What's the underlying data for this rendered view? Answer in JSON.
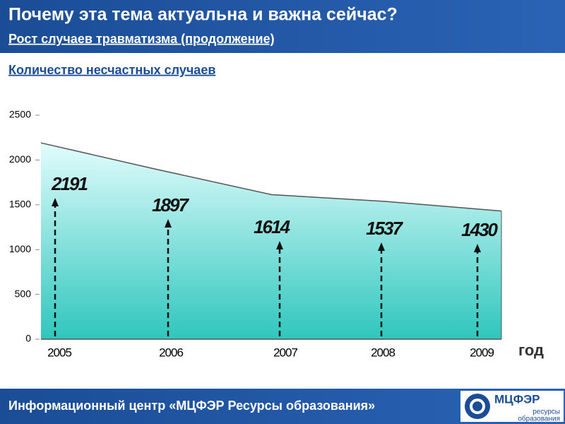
{
  "header": {
    "title": "Почему эта тема актуальна и важна сейчас?",
    "subtitle": "Рост случаев травматизма (продолжение)"
  },
  "chart_data": {
    "type": "area",
    "title": "Количество  несчастных случаев",
    "x_label": "год",
    "categories": [
      "2005",
      "2006",
      "2007",
      "2008",
      "2009"
    ],
    "values": [
      2191,
      1897,
      1614,
      1537,
      1430
    ],
    "ylim": [
      0,
      2500
    ],
    "yticks": [
      0,
      500,
      1000,
      1500,
      2000,
      2500
    ],
    "color": "#2fc6bd",
    "line_color": "#555555"
  },
  "footer": {
    "text": "Информационный центр «МЦФЭР Ресурсы образования»",
    "logo": "МЦФЭР",
    "logo_caption_1": "ресурсы",
    "logo_caption_2": "образования"
  }
}
